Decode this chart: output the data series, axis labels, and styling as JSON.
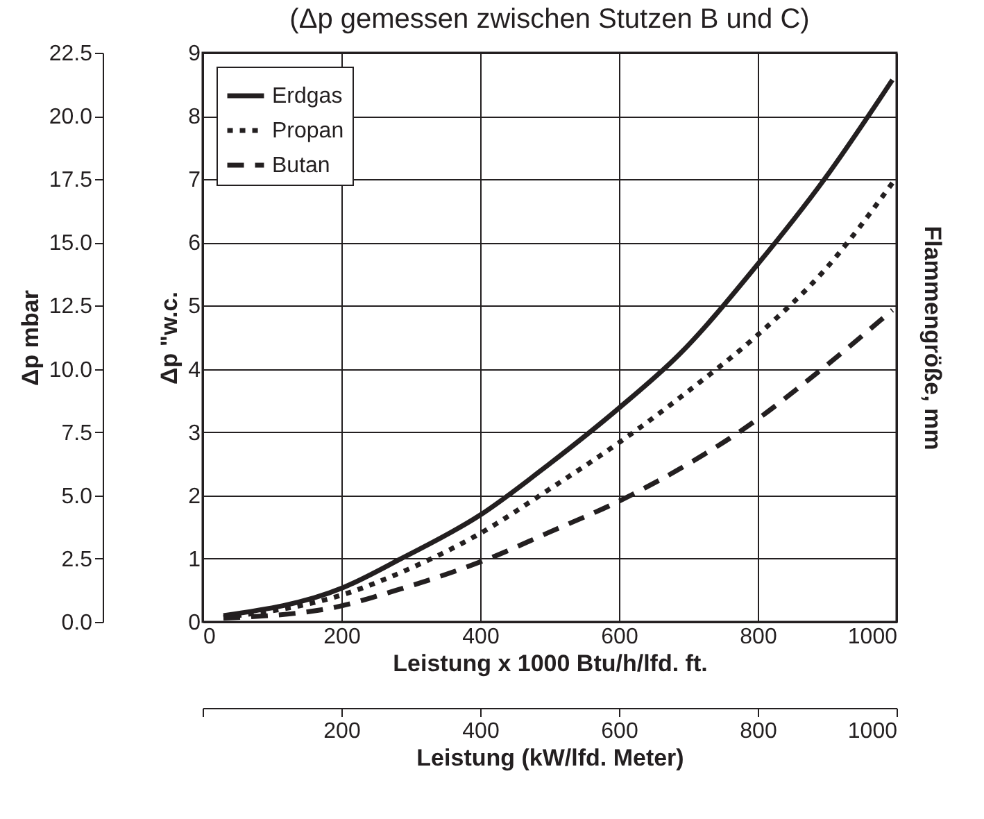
{
  "chart_data": {
    "type": "line",
    "title": "(Δp gemessen zwischen Stutzen B und C)",
    "xlabel": "Leistung x 1000 Btu/h/lfd. ft.",
    "ylabel": "Δp \"w.c.",
    "y2label": "Δp mbar",
    "y3label": "Flammengröße, mm",
    "x2label": "Leistung (kW/lfd. Meter)",
    "xlim": [
      0,
      1000
    ],
    "xticks": [
      0,
      200,
      400,
      600,
      800,
      1000
    ],
    "ylim": [
      0,
      9
    ],
    "yticks": [
      0,
      1,
      2,
      3,
      4,
      5,
      6,
      7,
      8,
      9
    ],
    "y2lim": [
      0,
      22.5
    ],
    "y2ticks": [
      {
        "value": 0,
        "label": "0.0"
      },
      2.5,
      {
        "value": 5,
        "label": "5.0"
      },
      7.5,
      {
        "value": 10,
        "label": "10.0"
      },
      12.5,
      {
        "value": 15,
        "label": "15.0"
      },
      17.5,
      {
        "value": 20,
        "label": "20.0"
      },
      22.5
    ],
    "x2lim": [
      0,
      1000
    ],
    "x2ticks": [
      {
        "value": 0,
        "label": null
      },
      200,
      400,
      600,
      800,
      1000
    ],
    "grid": true,
    "legend": "top left",
    "marker": "none",
    "series": [
      {
        "name": "Erdgas",
        "color": "#231f20",
        "line_style": "solid",
        "x": [
          30,
          202,
          286,
          400,
          500,
          602,
          686,
          798,
          896,
          994
        ],
        "values": [
          0.1,
          0.54,
          1.0,
          1.69,
          2.5,
          3.4,
          4.22,
          5.63,
          7.0,
          8.57
        ]
      },
      {
        "name": "Propan",
        "color": "#231f20",
        "line_style": "dotted",
        "x": [
          30,
          202,
          300,
          400,
          500,
          602,
          700,
          798,
          896,
          994
        ],
        "values": [
          0.07,
          0.43,
          0.85,
          1.4,
          2.1,
          2.85,
          3.65,
          4.52,
          5.56,
          6.94
        ]
      },
      {
        "name": "Butan",
        "color": "#231f20",
        "line_style": "dashed",
        "x": [
          30,
          181,
          279,
          419,
          500,
          602,
          700,
          777,
          896,
          994
        ],
        "values": [
          0.06,
          0.21,
          0.5,
          1.03,
          1.42,
          1.92,
          2.5,
          3.03,
          4.03,
          4.93
        ]
      }
    ]
  }
}
